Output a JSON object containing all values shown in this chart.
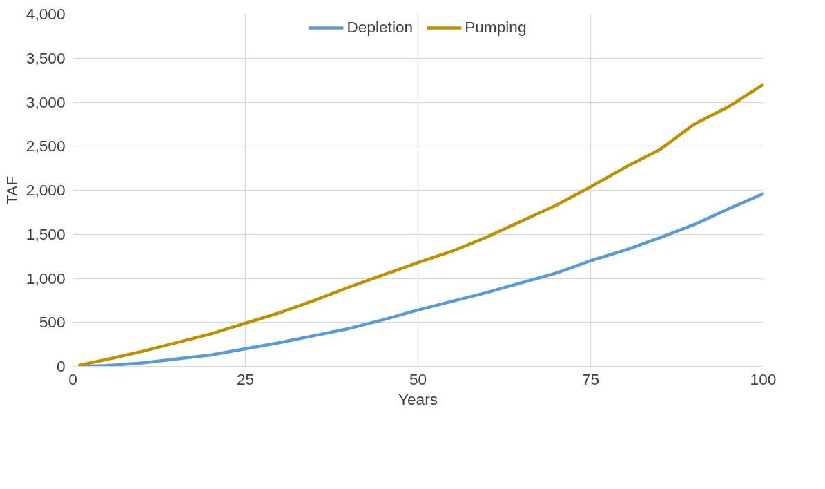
{
  "chart_data": {
    "type": "line",
    "xlabel": "Years",
    "ylabel": "TAF",
    "xlim": [
      0,
      100
    ],
    "xticks": [
      0,
      25,
      50,
      75,
      100
    ],
    "ylim": [
      0,
      4000
    ],
    "yticks": [
      0,
      500,
      {
        "value": 1000,
        "label": "1,000"
      },
      {
        "value": 1500,
        "label": "1,500"
      },
      {
        "value": 2000,
        "label": "2,000"
      },
      {
        "value": 2500,
        "label": "2,500"
      },
      {
        "value": 3000,
        "label": "3,000"
      },
      {
        "value": 3500,
        "label": "3,500"
      },
      {
        "value": 4000,
        "label": "4,000"
      }
    ],
    "grid": true,
    "legend": "top",
    "marker": "none",
    "line_style": "solid",
    "x": [
      1,
      5,
      10,
      15,
      20,
      25,
      30,
      35,
      40,
      45,
      50,
      55,
      60,
      65,
      70,
      75,
      80,
      85,
      90,
      95,
      100
    ],
    "series": [
      {
        "name": "Depletion",
        "color": "#5b9bd5",
        "values": [
          0,
          10,
          40,
          85,
          130,
          200,
          270,
          350,
          430,
          530,
          640,
          740,
          840,
          950,
          1060,
          1200,
          1320,
          1460,
          1610,
          1790,
          1960
        ]
      },
      {
        "name": "Pumping",
        "color": "#bf9000",
        "values": [
          15,
          80,
          170,
          270,
          370,
          490,
          610,
          750,
          900,
          1040,
          1180,
          1310,
          1470,
          1650,
          1830,
          2040,
          2260,
          2460,
          2750,
          2950,
          3200
        ]
      }
    ]
  }
}
